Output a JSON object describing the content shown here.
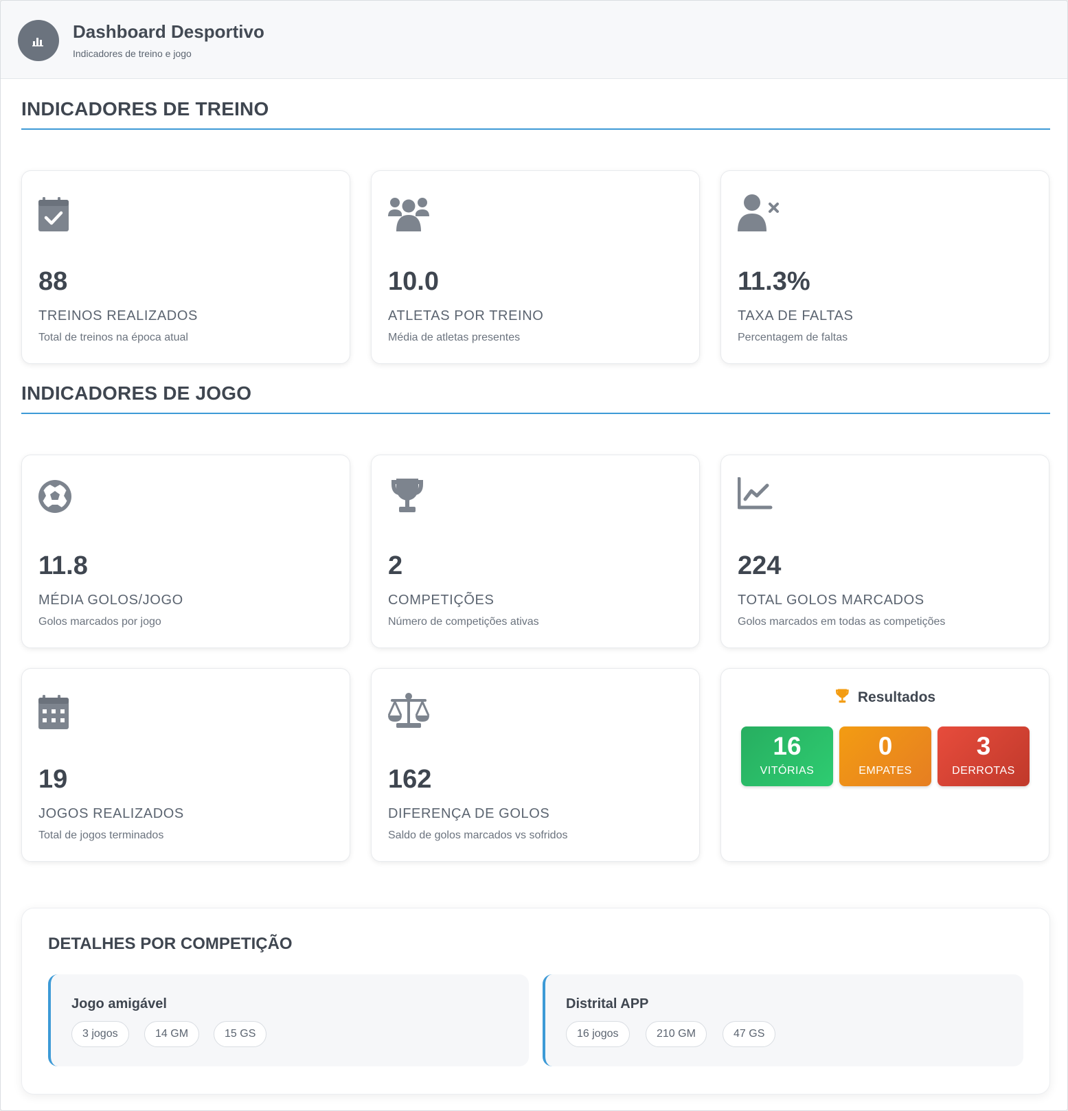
{
  "header": {
    "title": "Dashboard Desportivo",
    "subtitle": "Indicadores de treino e jogo",
    "logo_icon": "bar-chart-icon"
  },
  "training": {
    "title": "INDICADORES DE TREINO",
    "cards": [
      {
        "icon": "calendar-check-icon",
        "value": "88",
        "label": "TREINOS REALIZADOS",
        "desc": "Total de treinos na época atual"
      },
      {
        "icon": "users-icon",
        "value": "10.0",
        "label": "ATLETAS POR TREINO",
        "desc": "Média de atletas presentes"
      },
      {
        "icon": "user-x-icon",
        "value": "11.3%",
        "label": "TAXA DE FALTAS",
        "desc": "Percentagem de faltas"
      }
    ]
  },
  "game": {
    "title": "INDICADORES DE JOGO",
    "cards": [
      {
        "icon": "soccer-ball-icon",
        "value": "11.8",
        "label": "MÉDIA GOLOS/JOGO",
        "desc": "Golos marcados por jogo"
      },
      {
        "icon": "trophy-icon",
        "value": "2",
        "label": "COMPETIÇÕES",
        "desc": "Número de competições ativas"
      },
      {
        "icon": "line-chart-icon",
        "value": "224",
        "label": "TOTAL GOLOS MARCADOS",
        "desc": "Golos marcados em todas as competições"
      },
      {
        "icon": "calendar-icon",
        "value": "19",
        "label": "JOGOS REALIZADOS",
        "desc": "Total de jogos terminados"
      },
      {
        "icon": "balance-scale-icon",
        "value": "162",
        "label": "DIFERENÇA DE GOLOS",
        "desc": "Saldo de golos marcados vs sofridos"
      }
    ],
    "results": {
      "title": "Resultados",
      "icon": "trophy-icon",
      "wins": {
        "value": "16",
        "label": "VITÓRIAS",
        "color": "#27ae60"
      },
      "draws": {
        "value": "0",
        "label": "EMPATES",
        "color": "#f39c12"
      },
      "losses": {
        "value": "3",
        "label": "DERROTAS",
        "color": "#e74c3c"
      }
    }
  },
  "details": {
    "title": "DETALHES POR COMPETIÇÃO",
    "competitions": [
      {
        "name": "Jogo amigável",
        "games": "3 jogos",
        "goals_for": "14 GM",
        "goals_against": "15 GS"
      },
      {
        "name": "Distrital APP",
        "games": "16 jogos",
        "goals_for": "210 GM",
        "goals_against": "47 GS"
      }
    ]
  },
  "colors": {
    "accent": "#3d9ad6",
    "icon": "#7d848e",
    "text": "#3f4650"
  }
}
